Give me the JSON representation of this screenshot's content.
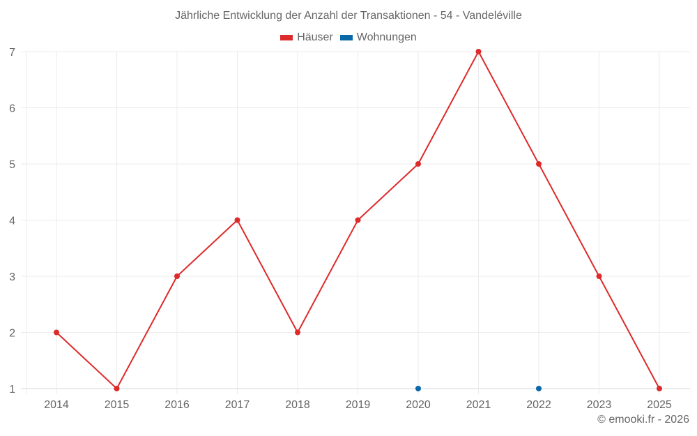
{
  "header": {
    "title": "Jährliche Entwicklung der Anzahl der Transaktionen - 54 - Vandeléville"
  },
  "legend": {
    "items": [
      {
        "label": "Häuser",
        "color": "#dd2a2a"
      },
      {
        "label": "Wohnungen",
        "color": "#0868a8"
      }
    ]
  },
  "footer": {
    "credit": "© emooki.fr - 2026"
  },
  "chart_data": {
    "type": "line",
    "title": "Jährliche Entwicklung der Anzahl der Transaktionen - 54 - Vandeléville",
    "xlabel": "",
    "ylabel": "",
    "categories": [
      "2014",
      "2015",
      "2016",
      "2017",
      "2018",
      "2019",
      "2020",
      "2021",
      "2022",
      "2023",
      "2025"
    ],
    "series": [
      {
        "name": "Häuser",
        "color": "#dd2a2a",
        "values": [
          2,
          1,
          3,
          4,
          2,
          4,
          5,
          7,
          5,
          3,
          1
        ]
      },
      {
        "name": "Wohnungen",
        "color": "#0868a8",
        "values": [
          null,
          null,
          null,
          null,
          null,
          null,
          1,
          null,
          1,
          null,
          null
        ]
      }
    ],
    "yticks": [
      1,
      2,
      3,
      4,
      5,
      6,
      7
    ],
    "ylim": [
      1,
      7
    ],
    "grid": true,
    "legend_position": "top"
  }
}
